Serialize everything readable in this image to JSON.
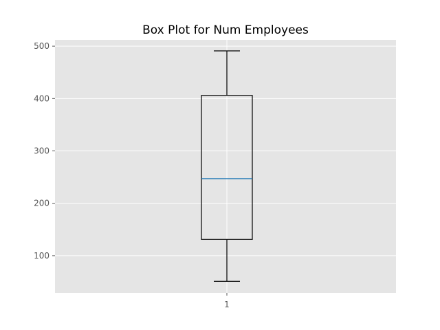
{
  "chart_data": {
    "type": "box",
    "title": "Box Plot for Num Employees",
    "xlabel": "",
    "ylabel": "",
    "categories": [
      "1"
    ],
    "boxes": [
      {
        "label": "1",
        "whisker_low": 51,
        "q1": 131,
        "median": 247,
        "q3": 406,
        "whisker_high": 491
      }
    ],
    "ylim": [
      29,
      512
    ],
    "y_ticks": [
      100,
      200,
      300,
      400,
      500
    ],
    "grid": true,
    "colors": {
      "plot_background": "#e5e5e5",
      "grid": "#ffffff",
      "box": "#000000",
      "median": "#1f77b4",
      "tick_label": "#555555"
    }
  }
}
